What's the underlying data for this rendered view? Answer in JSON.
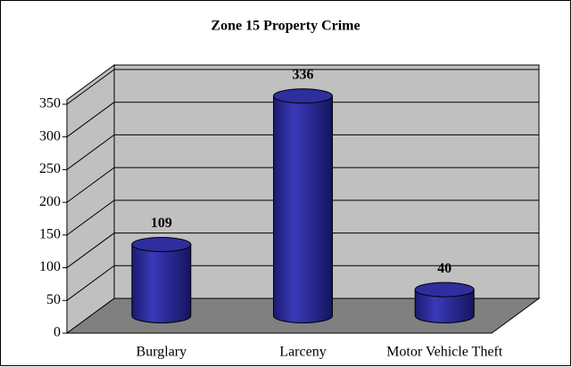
{
  "chart_data": {
    "type": "bar",
    "title": "Zone 15 Property Crime",
    "categories": [
      "Burglary",
      "Larceny",
      "Motor Vehicle Theft"
    ],
    "values": [
      109,
      336,
      40
    ],
    "color": "#2e2e9e",
    "ylim": [
      0,
      350
    ],
    "yticks": [
      0,
      50,
      100,
      150,
      200,
      250,
      300,
      350
    ],
    "grid": true
  }
}
